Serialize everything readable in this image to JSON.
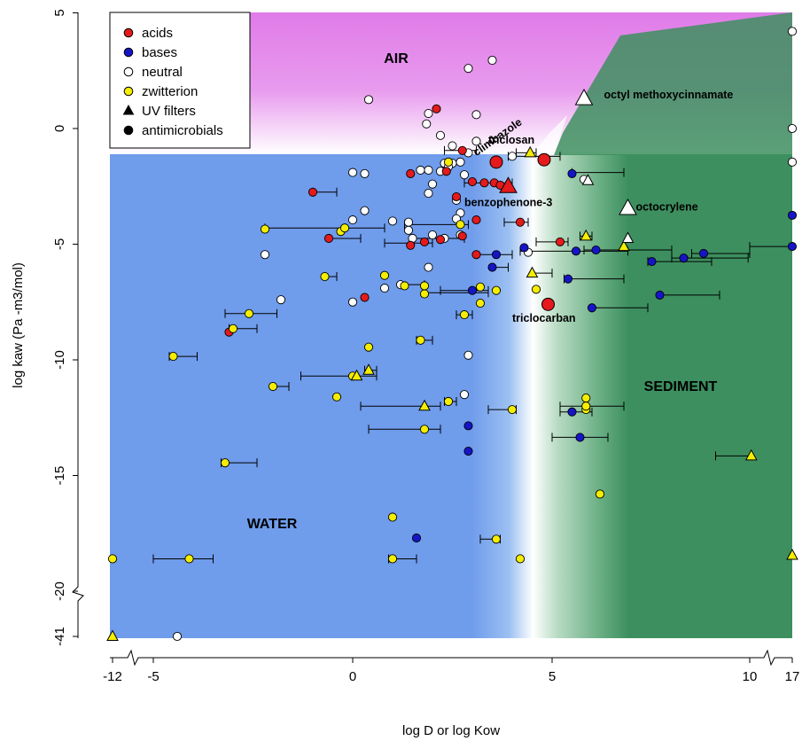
{
  "chart_data": {
    "type": "scatter",
    "xlabel": "log D or log Kow",
    "ylabel": "log kaw (Pa -m3/mol)",
    "x_ticks": [
      {
        "value": -12,
        "label": "-12"
      },
      {
        "value": -5,
        "label": "-5"
      },
      {
        "value": 0,
        "label": "0"
      },
      {
        "value": 5,
        "label": "5"
      },
      {
        "value": 10,
        "label": "10"
      },
      {
        "value": 17,
        "label": "17"
      }
    ],
    "y_ticks": [
      {
        "value": 5,
        "label": "5"
      },
      {
        "value": 0,
        "label": "0"
      },
      {
        "value": -5,
        "label": "-5"
      },
      {
        "value": -10,
        "label": "-10"
      },
      {
        "value": -15,
        "label": "-15"
      },
      {
        "value": -20,
        "label": "-20"
      },
      {
        "value": -41,
        "label": "-41"
      }
    ],
    "axis_breaks": {
      "x_low": [
        -12,
        -5.5
      ],
      "x_high": [
        10,
        17
      ],
      "y_low": [
        -41,
        -21
      ]
    },
    "regions": [
      {
        "name": "AIR",
        "label": "AIR",
        "color": "#e07be8"
      },
      {
        "name": "WATER",
        "label": "WATER",
        "color": "#6f9ceb"
      },
      {
        "name": "SEDIMENT",
        "label": "SEDIMENT",
        "color": "#3d8f5f"
      }
    ],
    "legend": {
      "position": "top-left",
      "entries": [
        {
          "label": "acids",
          "marker": "circle",
          "fill": "#e41a1c"
        },
        {
          "label": "bases",
          "marker": "circle",
          "fill": "#1515c8"
        },
        {
          "label": "neutral",
          "marker": "circle",
          "fill": "#ffffff"
        },
        {
          "label": "zwitterion",
          "marker": "circle",
          "fill": "#f5ee00"
        },
        {
          "label": "UV filters",
          "marker": "triangle",
          "fill": "#000000"
        },
        {
          "label": "antimicrobials",
          "marker": "circle",
          "fill": "#000000"
        }
      ]
    },
    "annotations": [
      {
        "text": "octyl methoxycinnamate",
        "x": 6.3,
        "y": 1.3
      },
      {
        "text": "climbazole",
        "x": 3.1,
        "y": -1.2,
        "rotate": -35
      },
      {
        "text": "triclosan",
        "x": 3.4,
        "y": -0.65
      },
      {
        "text": "benzophenone-3",
        "x": 2.8,
        "y": -3.35
      },
      {
        "text": "octocrylene",
        "x": 7.1,
        "y": -3.55
      },
      {
        "text": "triclocarban",
        "x": 4.0,
        "y": -8.35
      }
    ],
    "highlight_points": [
      {
        "name": "octyl methoxycinnamate",
        "class": "neutral",
        "marker": "triangle",
        "x": 5.8,
        "y": 1.3
      },
      {
        "name": "triclosan",
        "class": "acid",
        "marker": "circle",
        "x": 4.8,
        "y": -1.35
      },
      {
        "name": "climbazole",
        "class": "acid",
        "marker": "circle",
        "x": 3.6,
        "y": -1.45
      },
      {
        "name": "benzophenone-3",
        "class": "acid",
        "marker": "triangle",
        "x": 3.9,
        "y": -2.5
      },
      {
        "name": "octocrylene",
        "class": "neutral",
        "marker": "triangle",
        "x": 6.9,
        "y": -3.45
      },
      {
        "name": "triclocarban",
        "class": "acid",
        "marker": "circle",
        "x": 4.9,
        "y": -7.6
      }
    ],
    "series": [
      {
        "name": "neutral",
        "color": "#ffffff",
        "points": [
          [
            2.9,
            2.6
          ],
          [
            3.5,
            2.95
          ],
          [
            0.4,
            1.25
          ],
          [
            1.9,
            0.65
          ],
          [
            3.1,
            0.6
          ],
          [
            1.85,
            0.2
          ],
          [
            2.2,
            -0.3
          ],
          [
            2.5,
            -0.75
          ],
          [
            2.9,
            -1.05
          ],
          [
            3.1,
            -0.55
          ],
          [
            4.0,
            -1.2
          ],
          [
            1.7,
            -1.8
          ],
          [
            1.9,
            -1.8
          ],
          [
            2.3,
            -1.5
          ],
          [
            2.5,
            -1.5
          ],
          [
            2.7,
            -1.45
          ],
          [
            2.4,
            -1.65
          ],
          [
            2.8,
            -2.0
          ],
          [
            2.2,
            -1.85
          ],
          [
            0.0,
            -1.9
          ],
          [
            0.3,
            -1.95
          ],
          [
            2.0,
            -2.4
          ],
          [
            1.9,
            -2.8
          ],
          [
            2.6,
            -3.1
          ],
          [
            2.7,
            -3.65
          ],
          [
            0.3,
            -3.55
          ],
          [
            0.0,
            -3.95
          ],
          [
            1.0,
            -4.0
          ],
          [
            1.4,
            -4.05
          ],
          [
            1.4,
            -4.4
          ],
          [
            2.0,
            -4.6
          ],
          [
            2.3,
            -4.75
          ],
          [
            2.7,
            -4.6
          ],
          [
            2.6,
            -3.9
          ],
          [
            1.5,
            -4.75
          ],
          [
            4.4,
            -5.35
          ],
          [
            -2.2,
            -5.45
          ],
          [
            1.9,
            -6.0
          ],
          [
            0.8,
            -6.9
          ],
          [
            -1.8,
            -7.4
          ],
          [
            1.2,
            -6.75
          ],
          [
            0.0,
            -7.5
          ],
          [
            2.9,
            -9.8
          ],
          [
            2.8,
            -11.5
          ],
          [
            5.8,
            -2.2
          ],
          [
            -4.4,
            -41
          ],
          [
            16.9,
            4.2
          ],
          [
            16.9,
            0.0
          ],
          [
            16.9,
            -1.45
          ]
        ]
      },
      {
        "name": "acids",
        "color": "#e41a1c",
        "points": [
          [
            2.1,
            0.85
          ],
          [
            2.75,
            -0.95
          ],
          [
            1.45,
            -1.95
          ],
          [
            2.35,
            -1.85
          ],
          [
            3.0,
            -2.3
          ],
          [
            3.3,
            -2.35
          ],
          [
            3.55,
            -2.35
          ],
          [
            -1.0,
            -2.75
          ],
          [
            2.6,
            -2.95
          ],
          [
            3.7,
            -2.45
          ],
          [
            3.1,
            -3.95
          ],
          [
            4.2,
            -4.05
          ],
          [
            -0.6,
            -4.75
          ],
          [
            1.45,
            -5.05
          ],
          [
            1.8,
            -4.9
          ],
          [
            2.2,
            -4.8
          ],
          [
            2.75,
            -4.65
          ],
          [
            3.1,
            -5.45
          ],
          [
            5.2,
            -4.9
          ],
          [
            0.3,
            -7.3
          ],
          [
            -3.1,
            -8.8
          ]
        ]
      },
      {
        "name": "bases",
        "color": "#1515c8",
        "points": [
          [
            3.6,
            -5.45
          ],
          [
            4.3,
            -5.15
          ],
          [
            5.6,
            -5.3
          ],
          [
            6.1,
            -5.25
          ],
          [
            3.5,
            -6.0
          ],
          [
            3.0,
            -7.0
          ],
          [
            5.4,
            -6.5
          ],
          [
            7.5,
            -5.75
          ],
          [
            8.3,
            -5.6
          ],
          [
            8.8,
            -5.4
          ],
          [
            7.7,
            -7.2
          ],
          [
            6.0,
            -7.75
          ],
          [
            5.5,
            -12.25
          ],
          [
            5.7,
            -13.35
          ],
          [
            2.9,
            -12.85
          ],
          [
            2.9,
            -13.95
          ],
          [
            1.6,
            -17.7
          ],
          [
            16.9,
            -3.75
          ],
          [
            16.9,
            -5.1
          ],
          [
            5.5,
            -1.95
          ]
        ]
      },
      {
        "name": "zwitterion",
        "color": "#f5ee00",
        "points": [
          [
            -2.2,
            -4.35
          ],
          [
            2.7,
            -4.15
          ],
          [
            -0.3,
            -4.45
          ],
          [
            -0.2,
            -4.3
          ],
          [
            -0.7,
            -6.4
          ],
          [
            0.8,
            -6.35
          ],
          [
            1.3,
            -6.8
          ],
          [
            1.8,
            -6.8
          ],
          [
            1.8,
            -7.15
          ],
          [
            3.2,
            -6.85
          ],
          [
            3.6,
            -7.0
          ],
          [
            3.2,
            -7.55
          ],
          [
            2.8,
            -8.05
          ],
          [
            -2.6,
            -8.0
          ],
          [
            -3.0,
            -8.65
          ],
          [
            0.4,
            -9.45
          ],
          [
            1.7,
            -9.15
          ],
          [
            -4.5,
            -9.85
          ],
          [
            0.0,
            -10.7
          ],
          [
            -2.0,
            -11.15
          ],
          [
            -0.4,
            -11.6
          ],
          [
            2.4,
            -11.8
          ],
          [
            4.0,
            -12.15
          ],
          [
            5.85,
            -11.65
          ],
          [
            5.85,
            -12.15
          ],
          [
            1.8,
            -13.0
          ],
          [
            -3.2,
            -14.45
          ],
          [
            6.2,
            -15.8
          ],
          [
            1.0,
            -16.8
          ],
          [
            3.6,
            -17.75
          ],
          [
            -12,
            -18.6
          ],
          [
            -4.1,
            -18.6
          ],
          [
            1.0,
            -18.6
          ],
          [
            4.2,
            -18.6
          ],
          [
            4.6,
            -6.95
          ],
          [
            2.4,
            -1.45
          ],
          [
            5.85,
            -12.0
          ]
        ]
      },
      {
        "name": "uv-triangles",
        "color": "#f5ee00",
        "points": [
          [
            4.45,
            -1.05
          ],
          [
            0.4,
            -10.45
          ],
          [
            0.1,
            -10.7
          ],
          [
            1.8,
            -12.0
          ],
          [
            4.5,
            -6.25
          ],
          [
            5.85,
            -4.65
          ],
          [
            6.8,
            -5.1
          ],
          [
            10.4,
            -14.15
          ],
          [
            16.9,
            -18.45
          ],
          [
            -12,
            -41
          ]
        ]
      },
      {
        "name": "uv-triangles-neutral",
        "color": "#ffffff",
        "points": [
          [
            5.9,
            -2.25
          ],
          [
            6.9,
            -4.75
          ]
        ]
      }
    ],
    "error_bars": [
      {
        "y": -0.95,
        "x": [
          2.3,
          3.1
        ]
      },
      {
        "y": -2.75,
        "x": [
          -1.0,
          -0.4
        ]
      },
      {
        "y": -4.75,
        "x": [
          -0.6,
          0.2
        ]
      },
      {
        "y": -4.3,
        "x": [
          -2.2,
          0.8
        ]
      },
      {
        "y": -4.95,
        "x": [
          0.8,
          2.0
        ]
      },
      {
        "y": -4.75,
        "x": [
          1.5,
          2.8
        ]
      },
      {
        "y": -4.15,
        "x": [
          1.3,
          2.9
        ]
      },
      {
        "y": -5.45,
        "x": [
          3.1,
          4.0
        ]
      },
      {
        "y": -4.05,
        "x": [
          3.8,
          4.4
        ]
      },
      {
        "y": -4.9,
        "x": [
          4.6,
          5.4
        ]
      },
      {
        "y": -2.35,
        "x": [
          2.8,
          4.0
        ]
      },
      {
        "y": -1.2,
        "x": [
          3.9,
          5.2
        ]
      },
      {
        "y": -1.9,
        "x": [
          5.5,
          6.8
        ]
      },
      {
        "y": -5.3,
        "x": [
          4.2,
          6.9
        ]
      },
      {
        "y": -5.25,
        "x": [
          5.8,
          8.0
        ]
      },
      {
        "y": -5.75,
        "x": [
          7.4,
          9.0
        ]
      },
      {
        "y": -5.6,
        "x": [
          8.0,
          9.6
        ]
      },
      {
        "y": -5.4,
        "x": [
          8.5,
          10.0
        ]
      },
      {
        "y": -5.1,
        "x": [
          10.0,
          16.9
        ]
      },
      {
        "y": -7.2,
        "x": [
          7.7,
          9.2
        ]
      },
      {
        "y": -7.75,
        "x": [
          6.0,
          7.4
        ]
      },
      {
        "y": -6.5,
        "x": [
          5.3,
          6.8
        ]
      },
      {
        "y": -6.0,
        "x": [
          3.5,
          3.9
        ]
      },
      {
        "y": -7.0,
        "x": [
          2.2,
          3.4
        ]
      },
      {
        "y": -6.4,
        "x": [
          -0.7,
          -0.4
        ]
      },
      {
        "y": -6.75,
        "x": [
          1.2,
          1.8
        ]
      },
      {
        "y": -7.1,
        "x": [
          1.8,
          3.4
        ]
      },
      {
        "y": -8.0,
        "x": [
          -3.2,
          -1.9
        ]
      },
      {
        "y": -8.65,
        "x": [
          -3.1,
          -2.4
        ]
      },
      {
        "y": -8.05,
        "x": [
          2.6,
          3.0
        ]
      },
      {
        "y": -9.15,
        "x": [
          1.6,
          2.0
        ]
      },
      {
        "y": -9.85,
        "x": [
          -4.6,
          -3.9
        ]
      },
      {
        "y": -10.7,
        "x": [
          -1.3,
          0.6
        ]
      },
      {
        "y": -10.45,
        "x": [
          0.3,
          0.6
        ]
      },
      {
        "y": -11.15,
        "x": [
          -2.0,
          -1.6
        ]
      },
      {
        "y": -12.0,
        "x": [
          0.2,
          2.2
        ]
      },
      {
        "y": -12.15,
        "x": [
          3.4,
          4.1
        ]
      },
      {
        "y": -11.8,
        "x": [
          2.3,
          2.6
        ]
      },
      {
        "y": -12.0,
        "x": [
          5.2,
          6.8
        ]
      },
      {
        "y": -12.25,
        "x": [
          5.2,
          6.0
        ]
      },
      {
        "y": -13.35,
        "x": [
          5.0,
          6.4
        ]
      },
      {
        "y": -13.0,
        "x": [
          0.4,
          2.2
        ]
      },
      {
        "y": -14.45,
        "x": [
          -3.3,
          -2.4
        ]
      },
      {
        "y": -14.15,
        "x": [
          9.1,
          10.4
        ]
      },
      {
        "y": -17.75,
        "x": [
          3.2,
          3.7
        ]
      },
      {
        "y": -18.6,
        "x": [
          -5.0,
          -3.5
        ]
      },
      {
        "y": -18.6,
        "x": [
          0.9,
          1.6
        ]
      },
      {
        "y": -6.25,
        "x": [
          4.5,
          5.0
        ]
      },
      {
        "y": -4.65,
        "x": [
          5.7,
          6.0
        ]
      },
      {
        "y": -1.05,
        "x": [
          4.1,
          4.6
        ]
      }
    ]
  }
}
